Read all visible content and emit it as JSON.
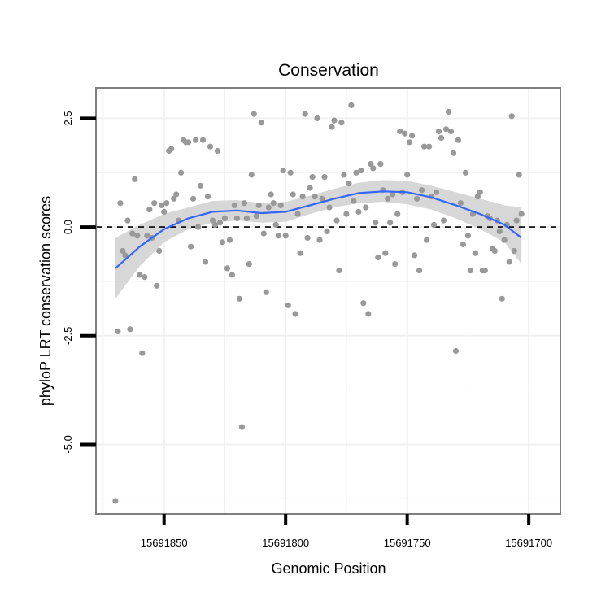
{
  "chart_data": {
    "type": "scatter",
    "title": "Conservation",
    "xlabel": "Genomic Position",
    "ylabel": "phyloP LRT conservation scores",
    "x_reversed": true,
    "xlim": [
      15691878,
      15691687
    ],
    "ylim": [
      -6.6,
      3.2
    ],
    "x_ticks": [
      15691850,
      15691800,
      15691750,
      15691700
    ],
    "x_tick_labels": [
      "15691850",
      "15691800",
      "15691750",
      "15691700"
    ],
    "y_ticks": [
      2.5,
      0.0,
      -2.5,
      -5.0
    ],
    "y_tick_labels": [
      "2.5",
      "0.0",
      "-2.5",
      "-5.0"
    ],
    "reference_line": {
      "y": 0,
      "style": "dashed",
      "color": "#000000"
    },
    "grid": true,
    "colors": {
      "points": "#999999",
      "smooth_line": "#3366ff",
      "confidence_band": "#d3d3d3",
      "panel_border": "#7f7f7f",
      "grid": "#f0f0f0",
      "axis_ticks": "#000000"
    },
    "series": [
      {
        "name": "phyloP LRT scores",
        "type": "scatter",
        "points": [
          [
            15691870,
            -6.3
          ],
          [
            15691869,
            -2.4
          ],
          [
            15691868,
            0.55
          ],
          [
            15691867,
            -0.55
          ],
          [
            15691866,
            -0.65
          ],
          [
            15691865,
            0.15
          ],
          [
            15691864,
            -2.35
          ],
          [
            15691863,
            -0.15
          ],
          [
            15691862,
            1.1
          ],
          [
            15691861,
            -0.2
          ],
          [
            15691860,
            -1.1
          ],
          [
            15691859,
            -2.9
          ],
          [
            15691858,
            -1.15
          ],
          [
            15691857,
            -0.2
          ],
          [
            15691856,
            0.4
          ],
          [
            15691855,
            -0.25
          ],
          [
            15691854,
            0.55
          ],
          [
            15691853,
            -1.35
          ],
          [
            15691852,
            -0.55
          ],
          [
            15691851,
            0.5
          ],
          [
            15691850,
            0.35
          ],
          [
            15691849,
            0.55
          ],
          [
            15691848,
            1.75
          ],
          [
            15691847,
            1.8
          ],
          [
            15691846,
            0.65
          ],
          [
            15691845,
            0.75
          ],
          [
            15691844,
            0.15
          ],
          [
            15691843,
            1.25
          ],
          [
            15691842,
            2.0
          ],
          [
            15691841,
            1.95
          ],
          [
            15691840,
            1.95
          ],
          [
            15691839,
            -0.45
          ],
          [
            15691838,
            0.65
          ],
          [
            15691837,
            2.0
          ],
          [
            15691836,
            0.0
          ],
          [
            15691835,
            0.95
          ],
          [
            15691834,
            2.0
          ],
          [
            15691833,
            -0.8
          ],
          [
            15691832,
            0.7
          ],
          [
            15691831,
            1.85
          ],
          [
            15691830,
            0.15
          ],
          [
            15691829,
            0.05
          ],
          [
            15691828,
            1.75
          ],
          [
            15691827,
            0.1
          ],
          [
            15691826,
            -0.35
          ],
          [
            15691825,
            0.2
          ],
          [
            15691824,
            -0.95
          ],
          [
            15691823,
            -0.3
          ],
          [
            15691822,
            -1.1
          ],
          [
            15691821,
            0.5
          ],
          [
            15691820,
            0.2
          ],
          [
            15691819,
            -1.65
          ],
          [
            15691818,
            -4.6
          ],
          [
            15691817,
            0.55
          ],
          [
            15691816,
            0.2
          ],
          [
            15691815,
            -0.85
          ],
          [
            15691814,
            1.2
          ],
          [
            15691813,
            2.6
          ],
          [
            15691812,
            0.25
          ],
          [
            15691811,
            0.5
          ],
          [
            15691810,
            2.4
          ],
          [
            15691809,
            -0.15
          ],
          [
            15691808,
            -1.5
          ],
          [
            15691807,
            0.45
          ],
          [
            15691806,
            0.75
          ],
          [
            15691805,
            0.55
          ],
          [
            15691804,
            0.05
          ],
          [
            15691803,
            -0.2
          ],
          [
            15691802,
            0.5
          ],
          [
            15691801,
            1.3
          ],
          [
            15691800,
            -0.2
          ],
          [
            15691799,
            -1.8
          ],
          [
            15691798,
            1.25
          ],
          [
            15691797,
            0.75
          ],
          [
            15691796,
            -2.0
          ],
          [
            15691795,
            0.3
          ],
          [
            15691794,
            -0.6
          ],
          [
            15691793,
            0.7
          ],
          [
            15691792,
            2.6
          ],
          [
            15691791,
            -0.25
          ],
          [
            15691790,
            0.9
          ],
          [
            15691789,
            1.15
          ],
          [
            15691788,
            0.7
          ],
          [
            15691787,
            2.5
          ],
          [
            15691786,
            -0.3
          ],
          [
            15691785,
            0.65
          ],
          [
            15691784,
            1.15
          ],
          [
            15691783,
            -0.1
          ],
          [
            15691782,
            0.45
          ],
          [
            15691781,
            2.3
          ],
          [
            15691780,
            2.45
          ],
          [
            15691779,
            0.15
          ],
          [
            15691778,
            -1.0
          ],
          [
            15691777,
            2.4
          ],
          [
            15691776,
            1.2
          ],
          [
            15691775,
            0.3
          ],
          [
            15691774,
            1.0
          ],
          [
            15691773,
            2.8
          ],
          [
            15691772,
            0.6
          ],
          [
            15691771,
            1.25
          ],
          [
            15691770,
            0.35
          ],
          [
            15691769,
            1.3
          ],
          [
            15691768,
            -1.75
          ],
          [
            15691767,
            0.45
          ],
          [
            15691766,
            -2.0
          ],
          [
            15691765,
            1.45
          ],
          [
            15691764,
            1.35
          ],
          [
            15691763,
            0.1
          ],
          [
            15691762,
            -0.7
          ],
          [
            15691761,
            1.45
          ],
          [
            15691760,
            0.85
          ],
          [
            15691759,
            -0.6
          ],
          [
            15691758,
            0.65
          ],
          [
            15691757,
            0.1
          ],
          [
            15691756,
            0.75
          ],
          [
            15691755,
            -0.85
          ],
          [
            15691754,
            0.3
          ],
          [
            15691753,
            2.2
          ],
          [
            15691752,
            0.8
          ],
          [
            15691751,
            2.15
          ],
          [
            15691750,
            1.2
          ],
          [
            15691749,
            1.95
          ],
          [
            15691748,
            2.1
          ],
          [
            15691747,
            -0.65
          ],
          [
            15691746,
            0.65
          ],
          [
            15691745,
            -1.0
          ],
          [
            15691744,
            0.85
          ],
          [
            15691743,
            1.85
          ],
          [
            15691742,
            -0.3
          ],
          [
            15691741,
            1.85
          ],
          [
            15691740,
            0.7
          ],
          [
            15691739,
            0.05
          ],
          [
            15691738,
            0.8
          ],
          [
            15691737,
            2.2
          ],
          [
            15691736,
            2.05
          ],
          [
            15691735,
            0.15
          ],
          [
            15691734,
            2.25
          ],
          [
            15691733,
            2.65
          ],
          [
            15691732,
            2.2
          ],
          [
            15691731,
            1.7
          ],
          [
            15691730,
            -2.85
          ],
          [
            15691729,
            2.0
          ],
          [
            15691728,
            0.55
          ],
          [
            15691727,
            -0.4
          ],
          [
            15691726,
            1.25
          ],
          [
            15691725,
            -0.2
          ],
          [
            15691724,
            -1.0
          ],
          [
            15691723,
            0.3
          ],
          [
            15691722,
            -0.6
          ],
          [
            15691721,
            0.7
          ],
          [
            15691720,
            0.8
          ],
          [
            15691719,
            -1.0
          ],
          [
            15691718,
            -1.0
          ],
          [
            15691717,
            0.25
          ],
          [
            15691716,
            0.2
          ],
          [
            15691715,
            -0.5
          ],
          [
            15691714,
            -0.55
          ],
          [
            15691713,
            0.15
          ],
          [
            15691712,
            -0.1
          ],
          [
            15691711,
            -1.65
          ],
          [
            15691710,
            -0.3
          ],
          [
            15691709,
            0.05
          ],
          [
            15691708,
            -0.8
          ],
          [
            15691707,
            2.55
          ],
          [
            15691706,
            -0.55
          ],
          [
            15691705,
            0.15
          ],
          [
            15691704,
            1.2
          ],
          [
            15691703,
            0.3
          ]
        ]
      },
      {
        "name": "loess fit",
        "type": "line",
        "x": [
          15691870,
          15691860,
          15691850,
          15691840,
          15691830,
          15691820,
          15691810,
          15691800,
          15691790,
          15691780,
          15691770,
          15691760,
          15691750,
          15691740,
          15691730,
          15691720,
          15691710,
          15691703
        ],
        "y": [
          -0.95,
          -0.45,
          -0.05,
          0.2,
          0.35,
          0.38,
          0.32,
          0.35,
          0.5,
          0.65,
          0.78,
          0.82,
          0.8,
          0.68,
          0.5,
          0.3,
          0.05,
          -0.25
        ],
        "band_lower": [
          -1.65,
          -0.9,
          -0.35,
          -0.05,
          0.1,
          0.15,
          0.1,
          0.12,
          0.3,
          0.45,
          0.55,
          0.58,
          0.52,
          0.4,
          0.2,
          -0.05,
          -0.35,
          -0.85
        ],
        "band_upper": [
          -0.25,
          0.05,
          0.3,
          0.45,
          0.6,
          0.62,
          0.55,
          0.58,
          0.72,
          0.88,
          1.02,
          1.08,
          1.06,
          0.95,
          0.8,
          0.65,
          0.5,
          0.45
        ]
      }
    ]
  }
}
